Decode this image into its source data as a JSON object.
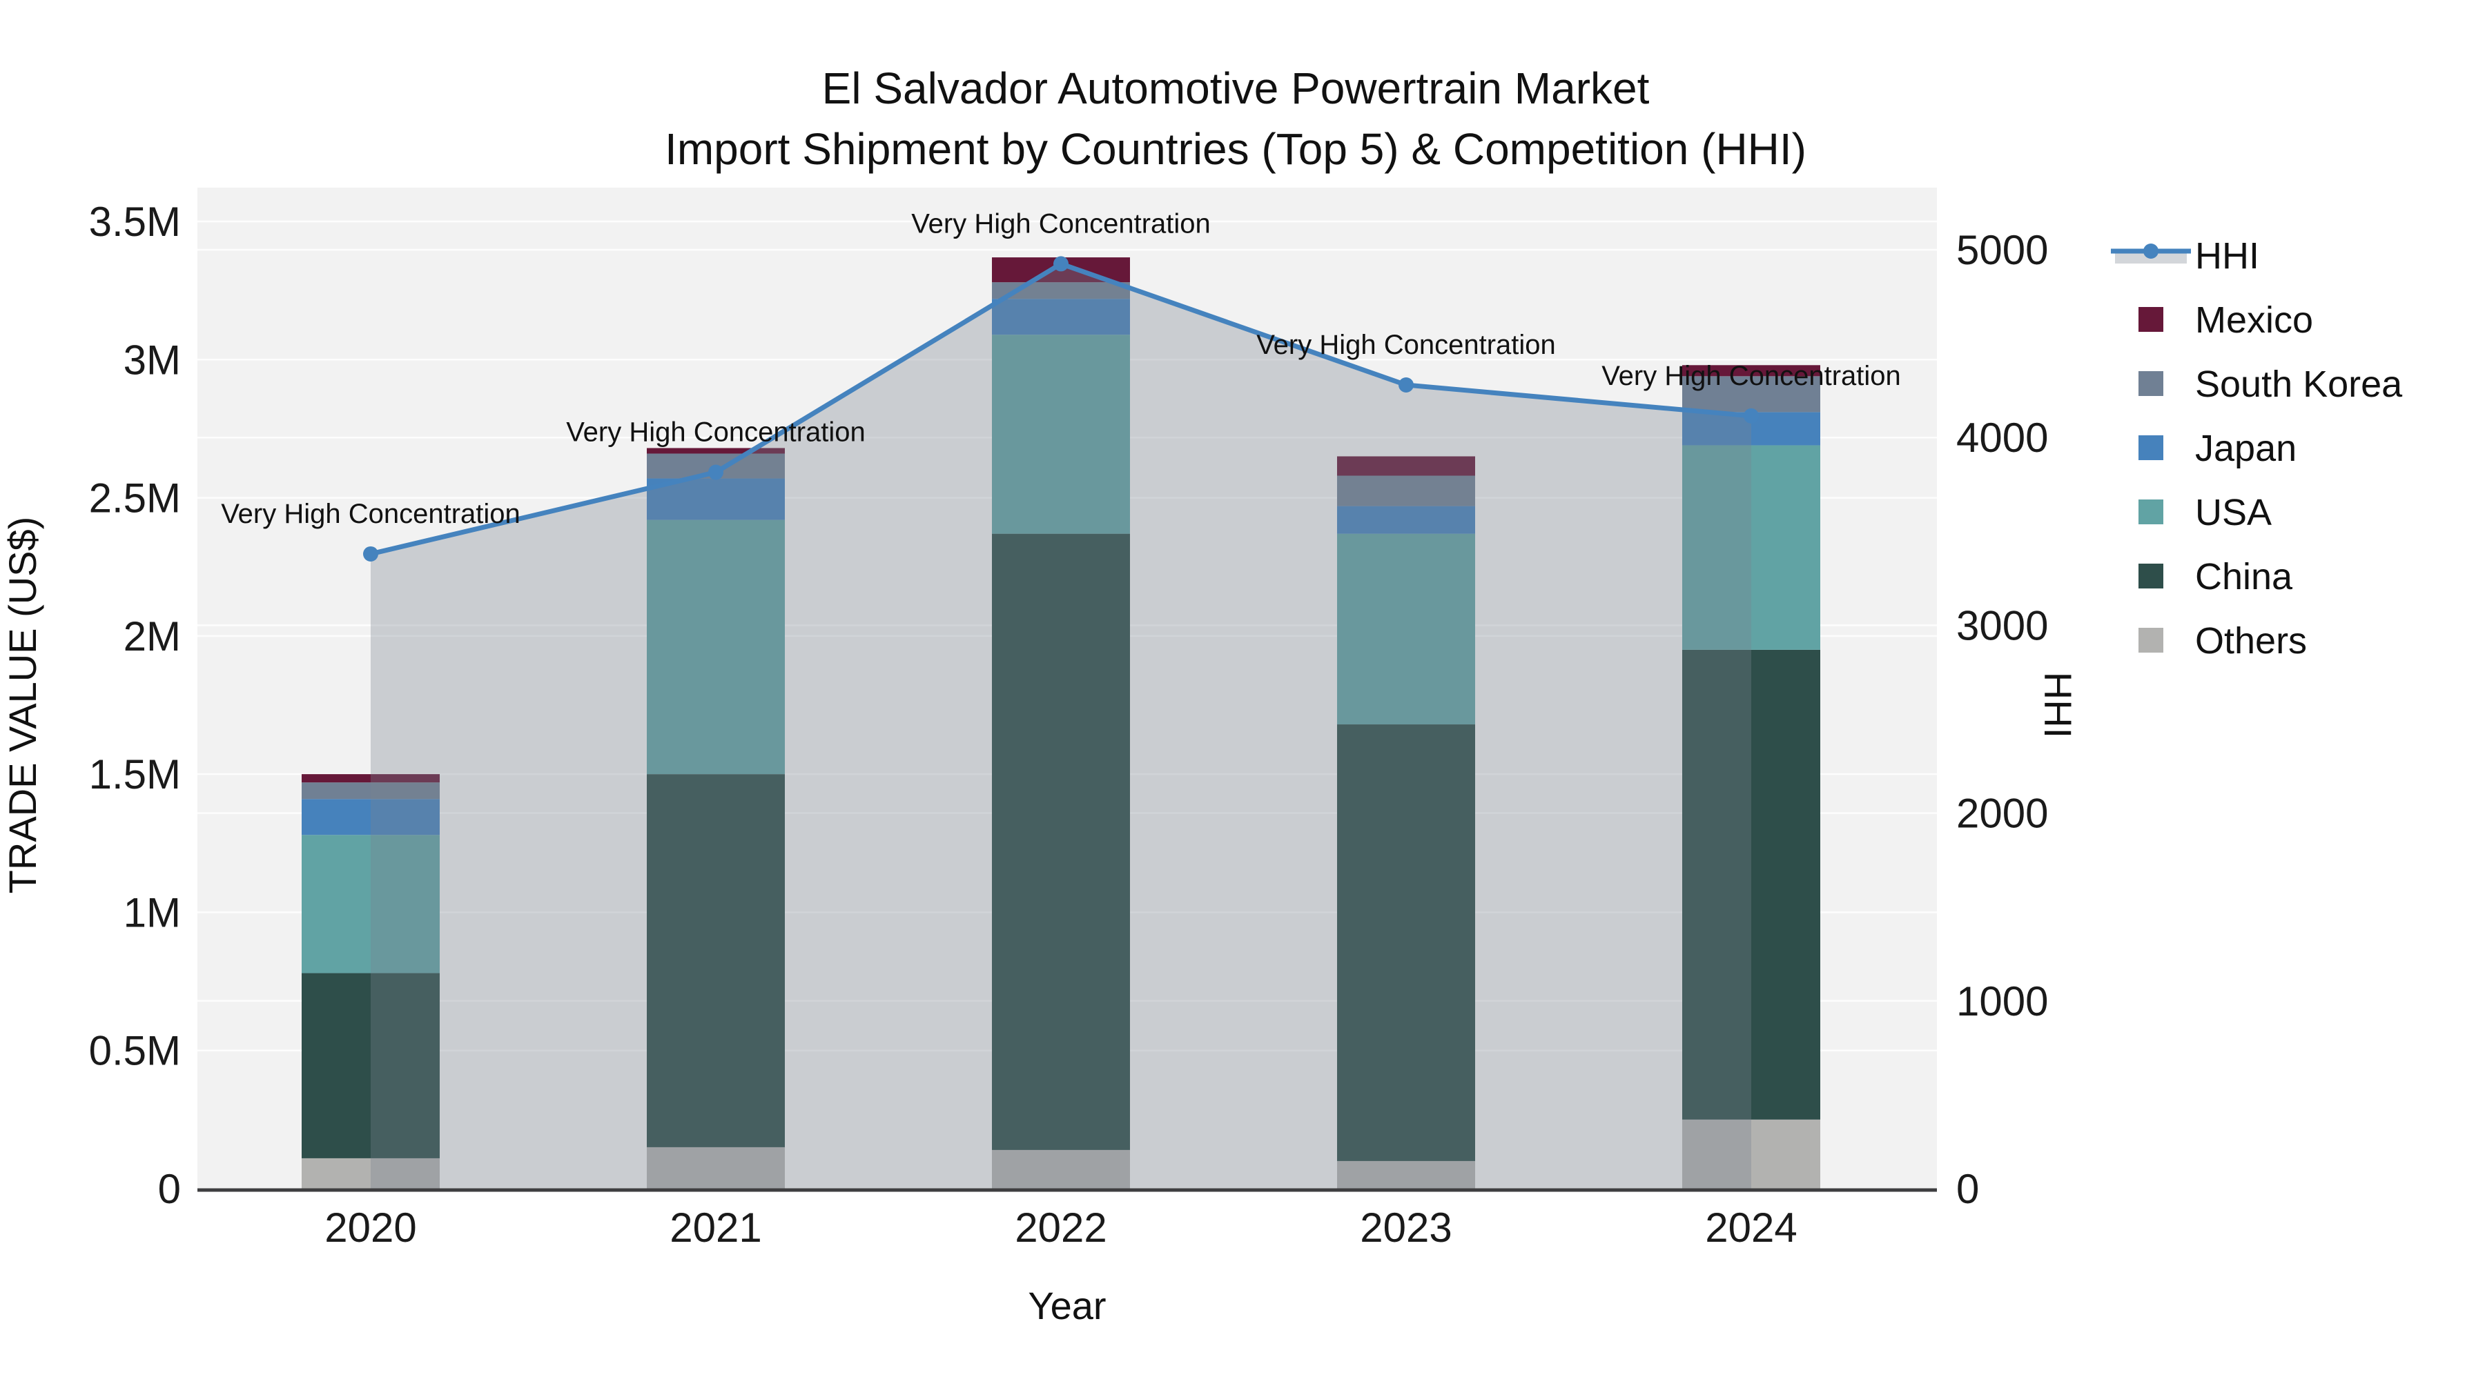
{
  "title": {
    "line1": "El Salvador Automotive Powertrain Market",
    "line2": "Import Shipment by Countries (Top 5) & Competition (HHI)"
  },
  "colors": {
    "plot_background": "#F2F2F2",
    "gridline": "#FFFFFF",
    "axis_line": "#3E3E40",
    "text": "#111111",
    "hhi_line": "#4583BE",
    "hhi_area_fill": "rgba(121,130,142,0.33)",
    "hhi_legend_band": "#D3D6DA"
  },
  "chart_data": {
    "type": "bar",
    "subtype": "stacked-bars-with-line-dual-axis",
    "categories": [
      "2020",
      "2021",
      "2022",
      "2023",
      "2024"
    ],
    "xlabel": "Year",
    "ylabel_left": "TRADE VALUE (US$)",
    "ylabel_right": "HHI",
    "y_left": {
      "unit": "million US$",
      "min": 0,
      "max": 3.5,
      "tick_values": [
        0,
        0.5,
        1,
        1.5,
        2,
        2.5,
        3,
        3.5
      ],
      "tick_labels": [
        "0",
        "0.5M",
        "1M",
        "1.5M",
        "2M",
        "2.5M",
        "3M",
        "3.5M"
      ]
    },
    "y_right": {
      "unit": "HHI index",
      "min": 0,
      "max": 5000,
      "tick_values": [
        0,
        1000,
        2000,
        3000,
        4000,
        5000
      ],
      "tick_labels": [
        "0",
        "1000",
        "2000",
        "3000",
        "4000",
        "5000"
      ]
    },
    "stack_order_bottom_to_top": [
      "Others",
      "China",
      "USA",
      "Japan",
      "South Korea",
      "Mexico"
    ],
    "series": [
      {
        "name": "Mexico",
        "color": "#661839",
        "values_million_usd": [
          0.03,
          0.02,
          0.09,
          0.07,
          0.04
        ]
      },
      {
        "name": "South Korea",
        "color": "#708094",
        "values_million_usd": [
          0.06,
          0.09,
          0.06,
          0.11,
          0.13
        ]
      },
      {
        "name": "Japan",
        "color": "#4682BC",
        "values_million_usd": [
          0.13,
          0.15,
          0.13,
          0.1,
          0.12
        ]
      },
      {
        "name": "USA",
        "color": "#61A3A4",
        "values_million_usd": [
          0.5,
          0.92,
          0.72,
          0.69,
          0.74
        ]
      },
      {
        "name": "China",
        "color": "#2E4E4A",
        "values_million_usd": [
          0.67,
          1.35,
          2.23,
          1.58,
          1.7
        ]
      },
      {
        "name": "Others",
        "color": "#B2B2B0",
        "values_million_usd": [
          0.11,
          0.15,
          0.14,
          0.1,
          0.25
        ]
      }
    ],
    "totals_million_usd": [
      1.5,
      2.68,
      3.37,
      2.65,
      2.98
    ],
    "hhi": {
      "name": "HHI",
      "values": [
        3380,
        3815,
        4925,
        4280,
        4115
      ],
      "area_fill_span": [
        "2020",
        "2024"
      ]
    },
    "annotations": [
      {
        "category": "2020",
        "text": "Very High Concentration"
      },
      {
        "category": "2021",
        "text": "Very High Concentration"
      },
      {
        "category": "2022",
        "text": "Very High Concentration"
      },
      {
        "category": "2023",
        "text": "Very High Concentration"
      },
      {
        "category": "2024",
        "text": "Very High Concentration"
      }
    ],
    "legend_position": "right",
    "grid": true
  },
  "legend": {
    "items": [
      "HHI",
      "Mexico",
      "South Korea",
      "Japan",
      "USA",
      "China",
      "Others"
    ]
  }
}
